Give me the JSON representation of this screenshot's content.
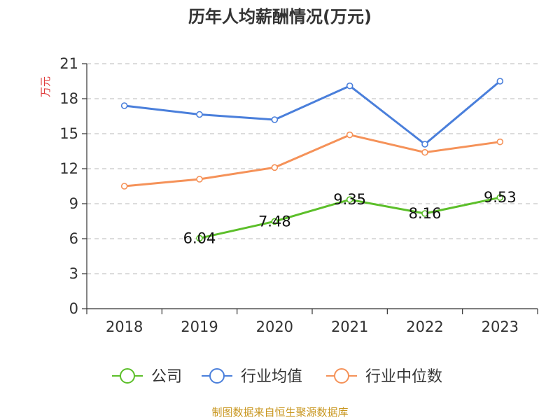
{
  "chart_data": {
    "type": "line",
    "title": "历年人均薪酬情况(万元)",
    "ylabel": "万元",
    "xlabel": "",
    "categories": [
      "2018",
      "2019",
      "2020",
      "2021",
      "2022",
      "2023"
    ],
    "ylim": [
      0,
      21
    ],
    "yticks": [
      0,
      3,
      6,
      9,
      12,
      15,
      18,
      21
    ],
    "grid": true,
    "legend_position": "bottom",
    "series": [
      {
        "name": "公司",
        "color": "#5cbf2a",
        "values": [
          null,
          6.04,
          7.48,
          9.35,
          8.16,
          9.53
        ],
        "labels": [
          "",
          "6.04",
          "7.48",
          "9.35",
          "8.16",
          "9.53"
        ]
      },
      {
        "name": "行业均值",
        "color": "#4a7fdb",
        "values": [
          17.4,
          16.65,
          16.2,
          19.1,
          14.1,
          19.5
        ],
        "labels": []
      },
      {
        "name": "行业中位数",
        "color": "#f59259",
        "values": [
          10.5,
          11.1,
          12.1,
          14.9,
          13.4,
          14.3
        ],
        "labels": []
      }
    ]
  },
  "footer": "制图数据来自恒生聚源数据库"
}
